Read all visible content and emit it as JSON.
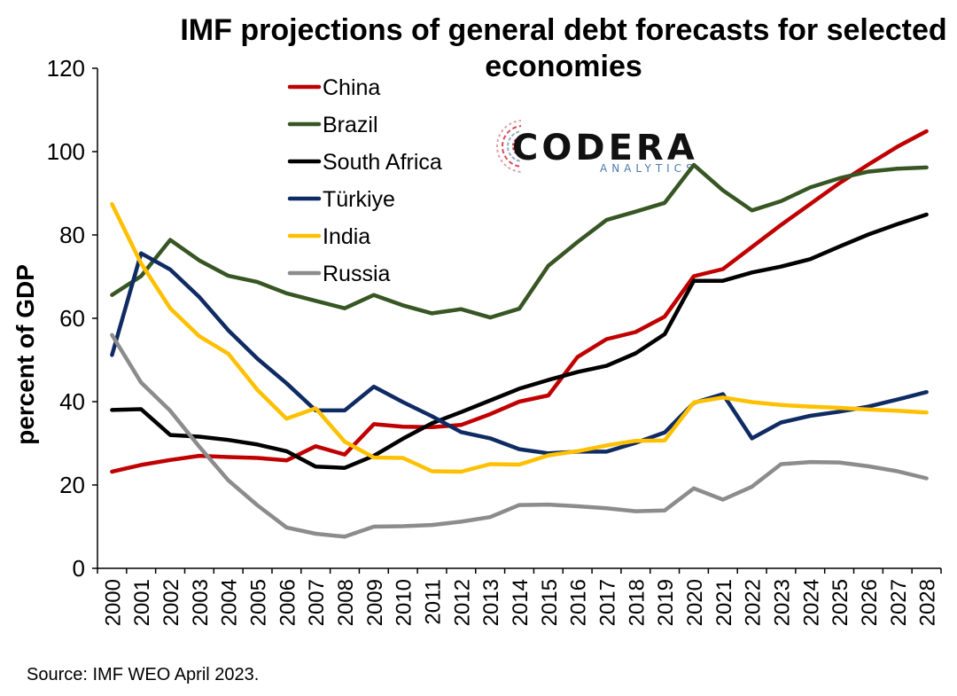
{
  "chart_data": {
    "type": "line",
    "title": "IMF projections of general debt forecasts for selected economies",
    "title_lines": [
      "IMF projections of general debt forecasts for selected",
      "economies"
    ],
    "ylabel": "percent of GDP",
    "xlabel": "",
    "ylim": [
      0,
      120
    ],
    "yticks": [
      0,
      20,
      40,
      60,
      80,
      100,
      120
    ],
    "grid": false,
    "legend_position": "top-left",
    "x": [
      "2000",
      "2001",
      "2002",
      "2003",
      "2004",
      "2005",
      "2006",
      "2007",
      "2008",
      "2009",
      "2010",
      "2011",
      "2012",
      "2013",
      "2014",
      "2015",
      "2016",
      "2017",
      "2018",
      "2019",
      "2020",
      "2021",
      "2022",
      "2023",
      "2024",
      "2025",
      "2026",
      "2027",
      "2028"
    ],
    "series": [
      {
        "name": "China",
        "color": "#c00000",
        "values": [
          23.2,
          24.8,
          26.0,
          27.0,
          26.7,
          26.5,
          25.9,
          29.3,
          27.3,
          34.6,
          34.0,
          33.9,
          34.4,
          37.0,
          40.0,
          41.5,
          50.7,
          55.0,
          56.7,
          60.4,
          70.1,
          71.8,
          77.1,
          82.4,
          87.4,
          92.4,
          96.9,
          101.2,
          104.9
        ]
      },
      {
        "name": "Brazil",
        "color": "#375623",
        "values": [
          65.6,
          70.1,
          78.8,
          73.9,
          70.2,
          68.7,
          66.0,
          64.2,
          62.4,
          65.6,
          63.1,
          61.2,
          62.2,
          60.2,
          62.3,
          72.6,
          78.3,
          83.6,
          85.6,
          87.7,
          96.8,
          90.7,
          85.9,
          88.1,
          91.4,
          93.6,
          95.2,
          95.9,
          96.2
        ]
      },
      {
        "name": "South Africa",
        "color": "#000000",
        "values": [
          38.0,
          38.2,
          32.0,
          31.6,
          30.8,
          29.7,
          28.1,
          24.4,
          24.1,
          27.0,
          31.1,
          34.8,
          37.5,
          40.3,
          43.1,
          45.2,
          47.1,
          48.6,
          51.6,
          56.2,
          69.0,
          69.0,
          71.0,
          72.4,
          74.2,
          77.2,
          80.1,
          82.6,
          84.9
        ]
      },
      {
        "name": "Türkiye",
        "color": "#0f2b63",
        "values": [
          51.2,
          75.6,
          71.7,
          65.1,
          57.1,
          50.3,
          44.4,
          37.9,
          37.9,
          43.6,
          39.9,
          36.5,
          32.7,
          31.2,
          28.6,
          27.6,
          28.0,
          28.0,
          30.1,
          32.6,
          39.7,
          41.8,
          31.2,
          35.0,
          36.6,
          37.6,
          38.8,
          40.5,
          42.3
        ]
      },
      {
        "name": "India",
        "color": "#ffc000",
        "values": [
          87.4,
          73.2,
          62.4,
          55.7,
          51.5,
          42.8,
          35.9,
          38.4,
          30.4,
          26.6,
          26.5,
          23.3,
          23.2,
          25.0,
          24.9,
          27.1,
          28.1,
          29.5,
          30.6,
          30.7,
          39.8,
          41.0,
          39.9,
          39.2,
          38.8,
          38.5,
          38.1,
          37.8,
          37.4
        ]
      },
      {
        "name": "Russia",
        "color": "#8c8c8c",
        "values": [
          56.0,
          44.6,
          37.8,
          29.2,
          21.1,
          15.1,
          9.8,
          8.3,
          7.6,
          10.0,
          10.1,
          10.4,
          11.2,
          12.3,
          15.2,
          15.3,
          14.9,
          14.4,
          13.7,
          13.9,
          19.2,
          16.5,
          19.6,
          25.0,
          25.5,
          25.4,
          24.5,
          23.3,
          21.6
        ]
      }
    ]
  },
  "logo": {
    "word": "CODERA",
    "sub": "ANALYTICS"
  },
  "source": "Source: IMF WEO April 2023."
}
